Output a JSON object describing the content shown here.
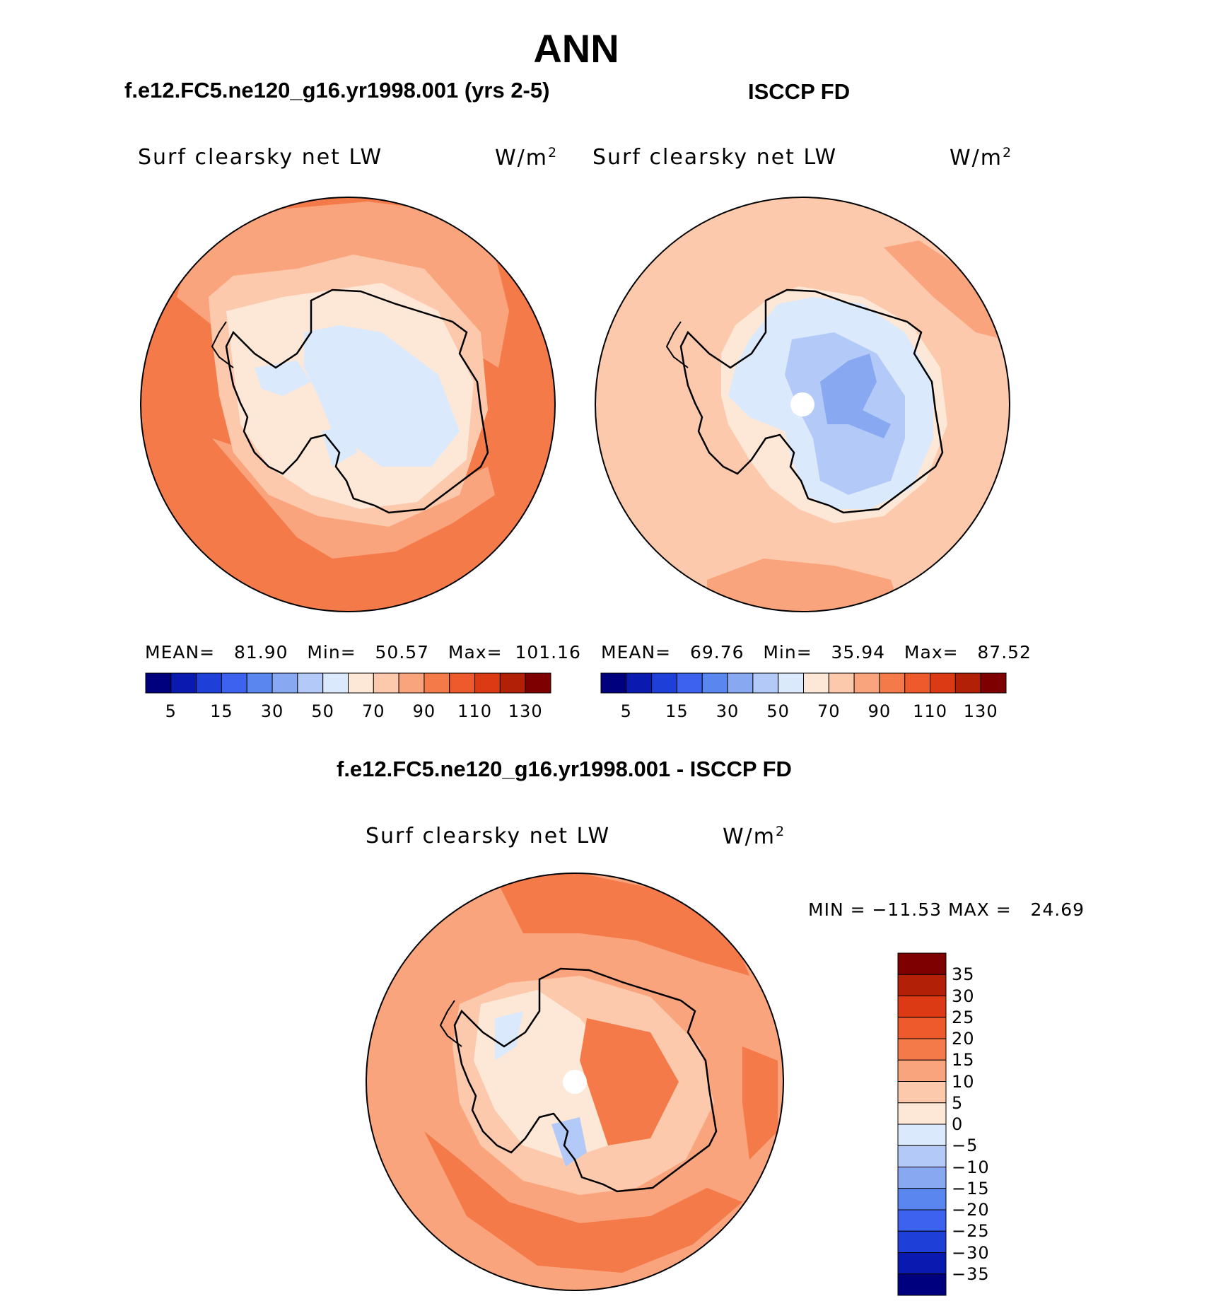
{
  "title": "ANN",
  "panels": [
    {
      "id": "model",
      "case_title": "f.e12.FC5.ne120_g16.yr1998.001 (yrs 2-5)",
      "variable": "Surf clearsky net LW",
      "units": "W/m",
      "units_sup": "2",
      "stats_text": "MEAN=   81.90   Min=   50.57   Max=  101.16",
      "mean": 81.9,
      "min": 50.57,
      "max": 101.16,
      "colorbar_labels": [
        "5",
        "15",
        "30",
        "50",
        "70",
        "90",
        "110",
        "130"
      ]
    },
    {
      "id": "obs",
      "case_title": "ISCCP FD",
      "variable": "Surf clearsky net LW",
      "units": "W/m",
      "units_sup": "2",
      "stats_text": "MEAN=   69.76   Min=   35.94   Max=   87.52",
      "mean": 69.76,
      "min": 35.94,
      "max": 87.52,
      "colorbar_labels": [
        "5",
        "15",
        "30",
        "50",
        "70",
        "90",
        "110",
        "130"
      ]
    }
  ],
  "difference": {
    "case_title": "f.e12.FC5.ne120_g16.yr1998.001 - ISCCP FD",
    "variable": "Surf clearsky net LW",
    "units": "W/m",
    "units_sup": "2",
    "minmax_text": "MIN = −11.53 MAX =   24.69",
    "min": -11.53,
    "max": 24.69,
    "colorbar_labels": [
      "35",
      "30",
      "25",
      "20",
      "15",
      "10",
      "5",
      "0",
      "−5",
      "−10",
      "−15",
      "−20",
      "−25",
      "−30",
      "−35"
    ]
  },
  "colors": {
    "scale": [
      "#00007f",
      "#0a1ab0",
      "#1e3fd8",
      "#3d62f0",
      "#5a86f0",
      "#88a9f2",
      "#b3c9f7",
      "#dbe9fc",
      "#fde8d7",
      "#fcc9ac",
      "#faa47d",
      "#f47a4a",
      "#ef5a2c",
      "#db3a15",
      "#b22008",
      "#7f0000"
    ],
    "land_outline": "#000000",
    "pole_hole": "#ffffff"
  }
}
